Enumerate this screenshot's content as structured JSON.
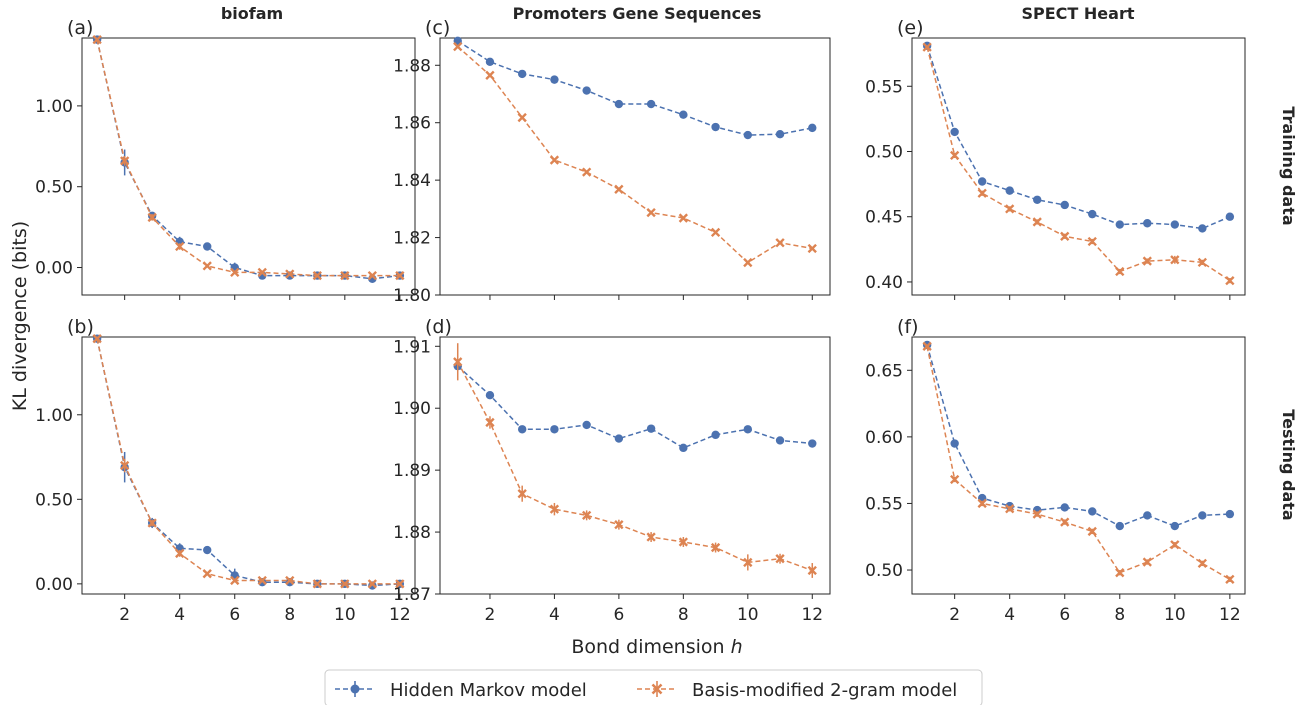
{
  "figure": {
    "ylabel": "KL divergence (bits)",
    "xlabel": "Bond dimension ",
    "xlabel_italic": "h",
    "row_titles": [
      "Training data",
      "Testing data"
    ],
    "col_titles": [
      "biofam",
      "Promoters Gene Sequences",
      "SPECT Heart"
    ]
  },
  "legend": {
    "placement": "bottom-center",
    "entries": [
      {
        "label": "Hidden Markov model",
        "color": "#4c72b0",
        "marker": "circle"
      },
      {
        "label": "Basis-modified 2-gram model",
        "color": "#dd8452",
        "marker": "x"
      }
    ]
  },
  "colors": {
    "hmm": "#4c72b0",
    "bm2g": "#dd8452",
    "axis": "#262626"
  },
  "chart_data": [
    {
      "panel": "(a)",
      "type": "line",
      "title": "biofam",
      "x": [
        1,
        2,
        3,
        4,
        5,
        6,
        7,
        8,
        9,
        10,
        11,
        12
      ],
      "xticks": [],
      "xlim": [
        0.45,
        12.55
      ],
      "yticks": [
        "0.00",
        "0.50",
        "1.00"
      ],
      "ytick_values": [
        0,
        0.5,
        1.0
      ],
      "ylim": [
        -0.17,
        1.42
      ],
      "series": [
        {
          "name": "Hidden Markov model",
          "values": [
            1.41,
            0.65,
            0.32,
            0.16,
            0.13,
            0.0,
            -0.05,
            -0.05,
            -0.05,
            -0.05,
            -0.07,
            -0.05
          ],
          "err": [
            0,
            0.08,
            0.02,
            0.03,
            0.01,
            0.03,
            0.01,
            0.01,
            0.01,
            0.01,
            0.01,
            0.01
          ]
        },
        {
          "name": "Basis-modified 2-gram model",
          "values": [
            1.41,
            0.66,
            0.31,
            0.13,
            0.01,
            -0.03,
            -0.03,
            -0.04,
            -0.05,
            -0.05,
            -0.05,
            -0.05
          ],
          "err": [
            0,
            0.03,
            0.02,
            0.02,
            0.01,
            0.01,
            0.01,
            0.01,
            0.01,
            0.01,
            0.01,
            0.01
          ]
        }
      ]
    },
    {
      "panel": "(c)",
      "type": "line",
      "title": "Promoters Gene Sequences",
      "x": [
        1,
        2,
        3,
        4,
        5,
        6,
        7,
        8,
        9,
        10,
        11,
        12
      ],
      "xticks": [],
      "xlim": [
        0.45,
        12.55
      ],
      "yticks": [
        "1.80",
        "1.82",
        "1.84",
        "1.86",
        "1.88"
      ],
      "ytick_values": [
        1.8,
        1.82,
        1.84,
        1.86,
        1.88
      ],
      "ylim": [
        1.8,
        1.8895
      ],
      "series": [
        {
          "name": "Hidden Markov model",
          "values": [
            1.8885,
            1.8812,
            1.877,
            1.875,
            1.8712,
            1.8665,
            1.8665,
            1.8628,
            1.8585,
            1.8557,
            1.856,
            1.8582
          ],
          "err": [
            0,
            0,
            0,
            0,
            0,
            0,
            0,
            0,
            0,
            0,
            0,
            0
          ]
        },
        {
          "name": "Basis-modified 2-gram model",
          "values": [
            1.8865,
            1.8765,
            1.8618,
            1.847,
            1.8428,
            1.8368,
            1.8287,
            1.8268,
            1.8218,
            1.8113,
            1.8182,
            1.8162
          ],
          "err": [
            0,
            0,
            0,
            0,
            0,
            0,
            0,
            0,
            0,
            0,
            0,
            0
          ]
        }
      ]
    },
    {
      "panel": "(e)",
      "type": "line",
      "title": "SPECT Heart",
      "x": [
        1,
        2,
        3,
        4,
        5,
        6,
        7,
        8,
        9,
        10,
        11,
        12
      ],
      "xticks": [],
      "xlim": [
        0.45,
        12.55
      ],
      "yticks": [
        "0.40",
        "0.45",
        "0.50",
        "0.55"
      ],
      "ytick_values": [
        0.4,
        0.45,
        0.5,
        0.55
      ],
      "ylim": [
        0.39,
        0.587
      ],
      "series": [
        {
          "name": "Hidden Markov model",
          "values": [
            0.581,
            0.515,
            0.477,
            0.47,
            0.463,
            0.459,
            0.452,
            0.444,
            0.445,
            0.444,
            0.441,
            0.45
          ],
          "err": [
            0,
            0.003,
            0.003,
            0.002,
            0.002,
            0.002,
            0.002,
            0.002,
            0.002,
            0.002,
            0.002,
            0.002
          ]
        },
        {
          "name": "Basis-modified 2-gram model",
          "values": [
            0.58,
            0.497,
            0.468,
            0.456,
            0.446,
            0.435,
            0.431,
            0.408,
            0.416,
            0.417,
            0.415,
            0.401
          ],
          "err": [
            0,
            0.002,
            0.002,
            0.002,
            0.002,
            0.002,
            0.002,
            0.002,
            0.002,
            0.003,
            0.002,
            0.002
          ]
        }
      ]
    },
    {
      "panel": "(b)",
      "type": "line",
      "title": "",
      "x": [
        1,
        2,
        3,
        4,
        5,
        6,
        7,
        8,
        9,
        10,
        11,
        12
      ],
      "xticks": [
        "2",
        "4",
        "6",
        "8",
        "10",
        "12"
      ],
      "xlim": [
        0.45,
        12.55
      ],
      "yticks": [
        "0.00",
        "0.50",
        "1.00"
      ],
      "ytick_values": [
        0,
        0.5,
        1.0
      ],
      "ylim": [
        -0.06,
        1.46
      ],
      "series": [
        {
          "name": "Hidden Markov model",
          "values": [
            1.45,
            0.69,
            0.36,
            0.21,
            0.2,
            0.05,
            0.01,
            0.01,
            0.0,
            0.0,
            -0.01,
            0.0
          ],
          "err": [
            0,
            0.09,
            0.03,
            0.03,
            0.01,
            0.04,
            0.01,
            0.01,
            0.01,
            0.01,
            0.01,
            0.01
          ]
        },
        {
          "name": "Basis-modified 2-gram model",
          "values": [
            1.45,
            0.7,
            0.36,
            0.18,
            0.06,
            0.02,
            0.02,
            0.02,
            0.0,
            0.0,
            0.0,
            0.0
          ],
          "err": [
            0,
            0.04,
            0.02,
            0.02,
            0.01,
            0.01,
            0.01,
            0.01,
            0.01,
            0.01,
            0.01,
            0.01
          ]
        }
      ]
    },
    {
      "panel": "(d)",
      "type": "line",
      "title": "",
      "x": [
        1,
        2,
        3,
        4,
        5,
        6,
        7,
        8,
        9,
        10,
        11,
        12
      ],
      "xticks": [
        "2",
        "4",
        "6",
        "8",
        "10",
        "12"
      ],
      "xlim": [
        0.45,
        12.55
      ],
      "yticks": [
        "1.87",
        "1.88",
        "1.89",
        "1.90",
        "1.91"
      ],
      "ytick_values": [
        1.87,
        1.88,
        1.89,
        1.9,
        1.91
      ],
      "ylim": [
        1.87,
        1.9115
      ],
      "series": [
        {
          "name": "Hidden Markov model",
          "values": [
            1.9068,
            1.9021,
            1.8966,
            1.8966,
            1.8973,
            1.8951,
            1.8967,
            1.8936,
            1.8957,
            1.8966,
            1.8948,
            1.8943
          ],
          "err": [
            0,
            0,
            0,
            0,
            0,
            0,
            0,
            0,
            0,
            0,
            0,
            0
          ]
        },
        {
          "name": "Basis-modified 2-gram model",
          "values": [
            1.9075,
            1.8977,
            1.8862,
            1.8837,
            1.8827,
            1.8812,
            1.8792,
            1.8784,
            1.8775,
            1.8751,
            1.8757,
            1.8738
          ],
          "err": [
            0.003,
            0.001,
            0.0013,
            0.001,
            0.0008,
            0.0008,
            0.0008,
            0.0008,
            0.0008,
            0.0013,
            0.0008,
            0.0012
          ]
        }
      ]
    },
    {
      "panel": "(f)",
      "type": "line",
      "title": "",
      "x": [
        1,
        2,
        3,
        4,
        5,
        6,
        7,
        8,
        9,
        10,
        11,
        12
      ],
      "xticks": [
        "2",
        "4",
        "6",
        "8",
        "10",
        "12"
      ],
      "xlim": [
        0.45,
        12.55
      ],
      "yticks": [
        "0.50",
        "0.55",
        "0.60",
        "0.65"
      ],
      "ytick_values": [
        0.5,
        0.55,
        0.6,
        0.65
      ],
      "ylim": [
        0.482,
        0.675
      ],
      "series": [
        {
          "name": "Hidden Markov model",
          "values": [
            0.669,
            0.595,
            0.554,
            0.548,
            0.545,
            0.547,
            0.544,
            0.533,
            0.541,
            0.533,
            0.541,
            0.542
          ],
          "err": [
            0,
            0.002,
            0.002,
            0.002,
            0.002,
            0.002,
            0.002,
            0.002,
            0.002,
            0.002,
            0.002,
            0.002
          ]
        },
        {
          "name": "Basis-modified 2-gram model",
          "values": [
            0.668,
            0.568,
            0.55,
            0.546,
            0.542,
            0.536,
            0.529,
            0.498,
            0.506,
            0.519,
            0.505,
            0.493
          ],
          "err": [
            0,
            0.002,
            0.002,
            0.002,
            0.002,
            0.002,
            0.002,
            0.002,
            0.002,
            0.002,
            0.002,
            0.002
          ]
        }
      ]
    }
  ]
}
